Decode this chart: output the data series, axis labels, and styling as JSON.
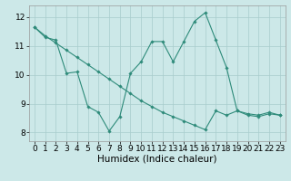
{
  "line1_x": [
    0,
    1,
    2,
    3,
    4,
    5,
    6,
    7,
    8,
    9,
    10,
    11,
    12,
    13,
    14,
    15,
    16,
    17,
    18,
    19,
    20,
    21,
    22,
    23
  ],
  "line1_y": [
    11.65,
    11.3,
    11.2,
    10.05,
    10.1,
    8.9,
    8.7,
    8.05,
    8.55,
    10.05,
    10.45,
    11.15,
    11.15,
    10.45,
    11.15,
    11.85,
    12.15,
    11.2,
    10.25,
    8.75,
    8.65,
    8.6,
    8.7,
    8.6
  ],
  "line2_x": [
    0,
    1,
    2,
    3,
    4,
    5,
    6,
    7,
    8,
    9,
    10,
    11,
    12,
    13,
    14,
    15,
    16,
    17,
    18,
    19,
    20,
    21,
    22,
    23
  ],
  "line2_y": [
    11.65,
    11.35,
    11.1,
    10.85,
    10.6,
    10.35,
    10.1,
    9.85,
    9.6,
    9.35,
    9.1,
    8.9,
    8.7,
    8.55,
    8.4,
    8.25,
    8.1,
    8.75,
    8.6,
    8.75,
    8.6,
    8.55,
    8.65,
    8.6
  ],
  "line_color": "#2e8b7a",
  "bg_color": "#cce8e8",
  "grid_color": "#a8cccc",
  "xlim": [
    -0.5,
    23.5
  ],
  "ylim": [
    7.7,
    12.4
  ],
  "xlabel": "Humidex (Indice chaleur)",
  "xticks": [
    0,
    1,
    2,
    3,
    4,
    5,
    6,
    7,
    8,
    9,
    10,
    11,
    12,
    13,
    14,
    15,
    16,
    17,
    18,
    19,
    20,
    21,
    22,
    23
  ],
  "yticks": [
    8,
    9,
    10,
    11,
    12
  ],
  "xlabel_fontsize": 7.5,
  "tick_fontsize": 6.5
}
